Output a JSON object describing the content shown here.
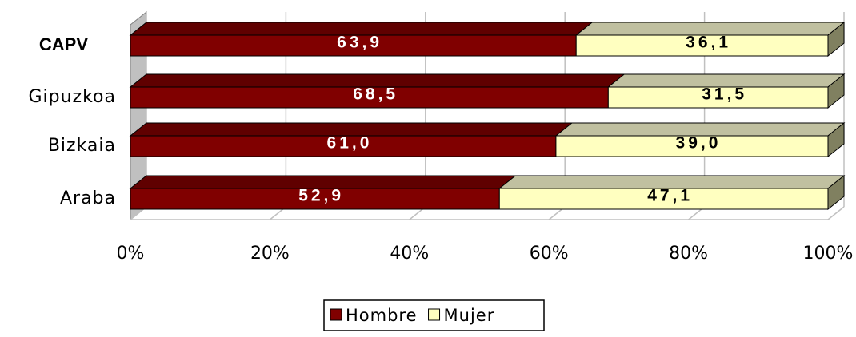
{
  "chart_data": {
    "type": "stacked-bar-3d",
    "categories": [
      "CAPV",
      "Gipuzkoa",
      "Bizkaia",
      "Araba"
    ],
    "series": [
      {
        "name": "Hombre",
        "color": "#800000",
        "values": [
          63.9,
          68.5,
          61.0,
          52.9
        ],
        "value_labels": [
          "63,9",
          "68,5",
          "61,0",
          "52,9"
        ]
      },
      {
        "name": "Mujer",
        "color": "#ffffc0",
        "values": [
          36.1,
          31.5,
          39.0,
          47.1
        ],
        "value_labels": [
          "36,1",
          "31,5",
          "39,0",
          "47,1"
        ]
      }
    ],
    "xlim": [
      0,
      100
    ],
    "xticks": [
      {
        "value": 0,
        "label": "0%"
      },
      {
        "value": 20,
        "label": "20%"
      },
      {
        "value": 40,
        "label": "40%"
      },
      {
        "value": 60,
        "label": "60%"
      },
      {
        "value": 80,
        "label": "80%"
      },
      {
        "value": 100,
        "label": "100%"
      }
    ],
    "grid": true,
    "legend": "bottom"
  }
}
